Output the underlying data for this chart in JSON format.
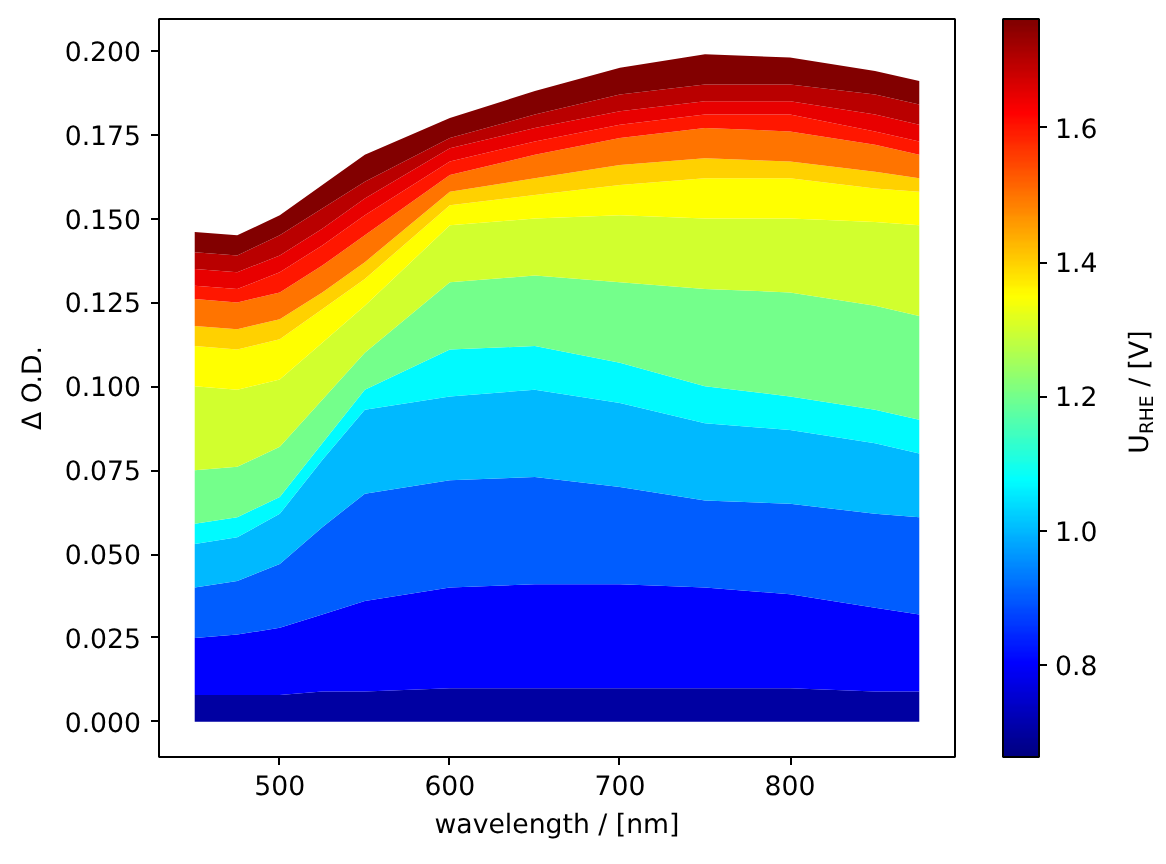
{
  "chart_data": {
    "type": "area",
    "stacked": true,
    "xlabel": "wavelength / [nm]",
    "ylabel": "Δ O.D.",
    "clabel": "U$_{RHE}$ / [V]",
    "x": [
      450,
      475,
      500,
      525,
      550,
      600,
      650,
      700,
      750,
      800,
      850,
      876
    ],
    "xlim": [
      429,
      897
    ],
    "xticks": [
      500,
      600,
      700,
      800
    ],
    "ylim": [
      -0.0105,
      0.2095
    ],
    "yticks": [
      {
        "value": 0,
        "label": "0.000"
      },
      {
        "value": 0.025,
        "label": "0.025"
      },
      {
        "value": 0.05,
        "label": "0.050"
      },
      {
        "value": 0.075,
        "label": "0.075"
      },
      {
        "value": 0.1,
        "label": "0.100"
      },
      {
        "value": 0.125,
        "label": "0.125"
      },
      {
        "value": 0.15,
        "label": "0.150"
      },
      {
        "value": 0.175,
        "label": "0.175"
      },
      {
        "value": 0.2,
        "label": "0.200"
      }
    ],
    "clim": [
      0.663,
      1.762
    ],
    "cticks": [
      {
        "value": 0.8,
        "label": "0.8"
      },
      {
        "value": 1.0,
        "label": "1.0"
      },
      {
        "value": 1.2,
        "label": "1.2"
      },
      {
        "value": 1.4,
        "label": "1.4"
      },
      {
        "value": 1.6,
        "label": "1.6"
      }
    ],
    "series": [
      {
        "color": "#0000a2",
        "values": [
          0.008,
          0.008,
          0.008,
          0.009,
          0.009,
          0.01,
          0.01,
          0.01,
          0.01,
          0.01,
          0.009,
          0.009
        ]
      },
      {
        "color": "#0000ff",
        "values": [
          0.017,
          0.018,
          0.02,
          0.023,
          0.027,
          0.03,
          0.031,
          0.031,
          0.03,
          0.028,
          0.025,
          0.023
        ]
      },
      {
        "color": "#005dff",
        "values": [
          0.015,
          0.016,
          0.019,
          0.026,
          0.032,
          0.032,
          0.032,
          0.029,
          0.026,
          0.027,
          0.028,
          0.029
        ]
      },
      {
        "color": "#00b9ff",
        "values": [
          0.013,
          0.013,
          0.015,
          0.02,
          0.025,
          0.025,
          0.026,
          0.025,
          0.023,
          0.022,
          0.021,
          0.019
        ]
      },
      {
        "color": "#00faff",
        "values": [
          0.006,
          0.006,
          0.005,
          0.005,
          0.006,
          0.014,
          0.013,
          0.012,
          0.011,
          0.01,
          0.01,
          0.01
        ]
      },
      {
        "color": "#74ff8b",
        "values": [
          0.016,
          0.015,
          0.015,
          0.013,
          0.011,
          0.02,
          0.021,
          0.024,
          0.029,
          0.031,
          0.031,
          0.031
        ]
      },
      {
        "color": "#d1ff2e",
        "values": [
          0.025,
          0.023,
          0.02,
          0.017,
          0.014,
          0.017,
          0.017,
          0.02,
          0.021,
          0.022,
          0.025,
          0.027
        ]
      },
      {
        "color": "#ffff00",
        "values": [
          0.012,
          0.012,
          0.012,
          0.01,
          0.008,
          0.006,
          0.007,
          0.009,
          0.012,
          0.012,
          0.01,
          0.01
        ]
      },
      {
        "color": "#ffd100",
        "values": [
          0.006,
          0.006,
          0.006,
          0.005,
          0.005,
          0.004,
          0.005,
          0.006,
          0.006,
          0.005,
          0.005,
          0.004
        ]
      },
      {
        "color": "#ff7400",
        "values": [
          0.008,
          0.008,
          0.008,
          0.008,
          0.008,
          0.005,
          0.007,
          0.008,
          0.009,
          0.009,
          0.008,
          0.007
        ]
      },
      {
        "color": "#ff1700",
        "values": [
          0.004,
          0.004,
          0.006,
          0.006,
          0.006,
          0.004,
          0.004,
          0.004,
          0.004,
          0.005,
          0.004,
          0.004
        ]
      },
      {
        "color": "#e80000",
        "values": [
          0.005,
          0.005,
          0.005,
          0.005,
          0.005,
          0.004,
          0.004,
          0.004,
          0.004,
          0.004,
          0.005,
          0.005
        ]
      },
      {
        "color": "#b90000",
        "values": [
          0.005,
          0.005,
          0.006,
          0.006,
          0.005,
          0.003,
          0.004,
          0.005,
          0.005,
          0.005,
          0.006,
          0.006
        ]
      },
      {
        "color": "#820000",
        "values": [
          0.006,
          0.006,
          0.006,
          0.007,
          0.008,
          0.006,
          0.007,
          0.008,
          0.009,
          0.008,
          0.007,
          0.007
        ]
      }
    ]
  }
}
